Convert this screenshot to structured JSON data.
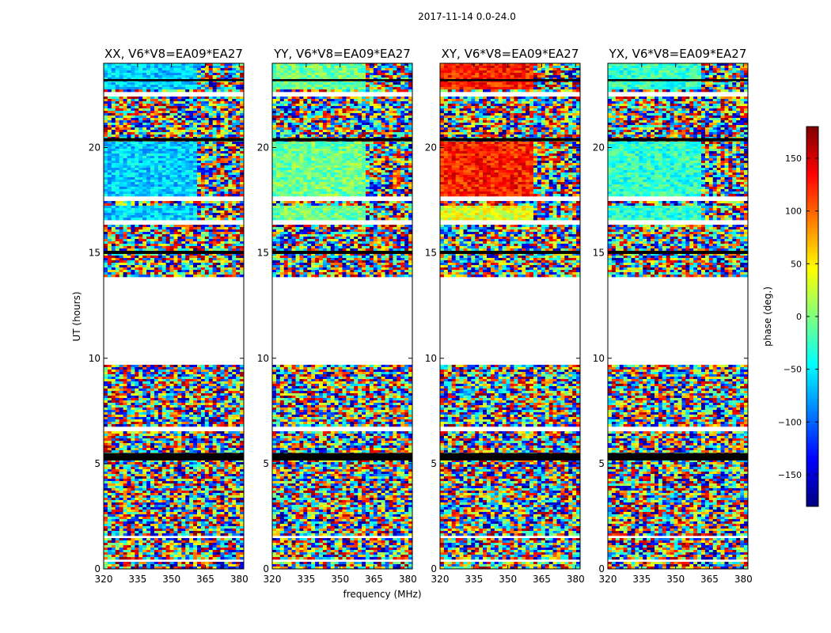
{
  "figure": {
    "suptitle": "2017-11-14 0.0-24.0",
    "xlabel": "frequency (MHz)",
    "ylabel": "UT (hours)",
    "colorbar_label": "phase (deg.)"
  },
  "chart_data": [
    {
      "type": "heatmap",
      "title": "XX, V6*V8=EA09*EA27",
      "xlabel": "frequency (MHz)",
      "ylabel": "UT (hours)",
      "x_ticks": [
        320,
        335,
        350,
        365,
        380
      ],
      "y_ticks": [
        0,
        5,
        10,
        15,
        20
      ],
      "xlim": [
        320,
        382
      ],
      "ylim": [
        0,
        24
      ],
      "legend": "none"
    },
    {
      "type": "heatmap",
      "title": "YY, V6*V8=EA09*EA27",
      "xlabel": "frequency (MHz)",
      "ylabel": "UT (hours)",
      "x_ticks": [
        320,
        335,
        350,
        365,
        380
      ],
      "y_ticks": [
        0,
        5,
        10,
        15,
        20
      ],
      "xlim": [
        320,
        382
      ],
      "ylim": [
        0,
        24
      ],
      "legend": "none"
    },
    {
      "type": "heatmap",
      "title": "XY, V6*V8=EA09*EA27",
      "xlabel": "frequency (MHz)",
      "ylabel": "UT (hours)",
      "x_ticks": [
        320,
        335,
        350,
        365,
        380
      ],
      "y_ticks": [
        0,
        5,
        10,
        15,
        20
      ],
      "xlim": [
        320,
        382
      ],
      "ylim": [
        0,
        24
      ],
      "legend": "none"
    },
    {
      "type": "heatmap",
      "title": "YX, V6*V8=EA09*EA27",
      "xlabel": "frequency (MHz)",
      "ylabel": "UT (hours)",
      "x_ticks": [
        320,
        335,
        350,
        365,
        380
      ],
      "y_ticks": [
        0,
        5,
        10,
        15,
        20
      ],
      "xlim": [
        320,
        382
      ],
      "ylim": [
        0,
        24
      ],
      "legend": "none"
    }
  ],
  "colorbar": {
    "label": "phase (deg.)",
    "range": [
      -180,
      180
    ],
    "ticks": [
      -150,
      -100,
      -50,
      0,
      50,
      100,
      150
    ],
    "tick_labels": [
      "−150",
      "−100",
      "−50",
      "0",
      "50",
      "100",
      "150"
    ],
    "colormap": "jet"
  },
  "colors": {
    "background": "#ffffff",
    "axis": "#000000",
    "flagged": "#ffffff"
  }
}
